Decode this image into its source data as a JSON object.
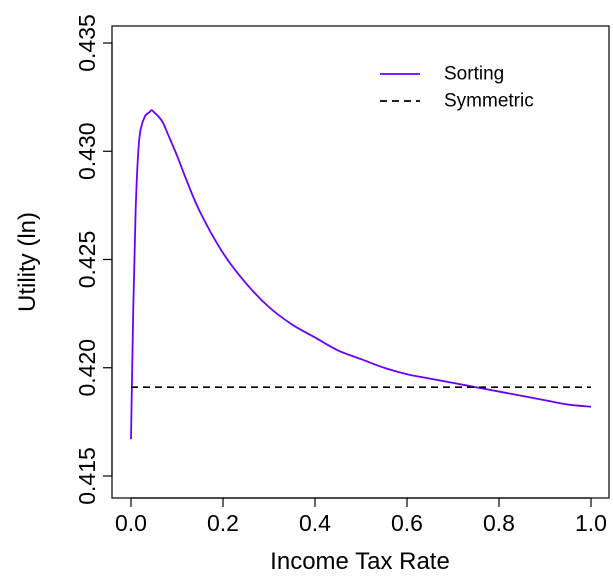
{
  "chart_data": {
    "type": "line",
    "title": "",
    "xlabel": "Income Tax Rate",
    "ylabel": "Utility (ln)",
    "xlim": [
      0.0,
      1.0
    ],
    "ylim": [
      0.415,
      0.435
    ],
    "x_ticks": [
      "0.0",
      "0.2",
      "0.4",
      "0.6",
      "0.8",
      "1.0"
    ],
    "y_ticks": [
      "0.415",
      "0.420",
      "0.425",
      "0.430",
      "0.435"
    ],
    "grid": false,
    "legend_position": "top-right",
    "series": [
      {
        "name": "Sorting",
        "color": "#6a00ff",
        "style": "solid",
        "x": [
          0.0,
          0.005,
          0.01,
          0.015,
          0.02,
          0.03,
          0.04,
          0.045,
          0.05,
          0.06,
          0.07,
          0.08,
          0.1,
          0.12,
          0.15,
          0.2,
          0.25,
          0.3,
          0.35,
          0.4,
          0.45,
          0.5,
          0.55,
          0.6,
          0.65,
          0.7,
          0.75,
          0.8,
          0.85,
          0.9,
          0.95,
          1.0
        ],
        "y": [
          0.4167,
          0.4228,
          0.4272,
          0.4297,
          0.4309,
          0.4316,
          0.4318,
          0.4319,
          0.4318,
          0.4316,
          0.4313,
          0.4308,
          0.4298,
          0.4287,
          0.4272,
          0.4253,
          0.4239,
          0.4228,
          0.422,
          0.4214,
          0.4208,
          0.4204,
          0.42,
          0.4197,
          0.4195,
          0.4193,
          0.4191,
          0.4189,
          0.4187,
          0.4185,
          0.4183,
          0.4182
        ]
      },
      {
        "name": "Symmetric",
        "color": "#000000",
        "style": "dashed",
        "x": [
          0.0,
          1.0
        ],
        "y": [
          0.4191,
          0.4191
        ]
      }
    ]
  }
}
